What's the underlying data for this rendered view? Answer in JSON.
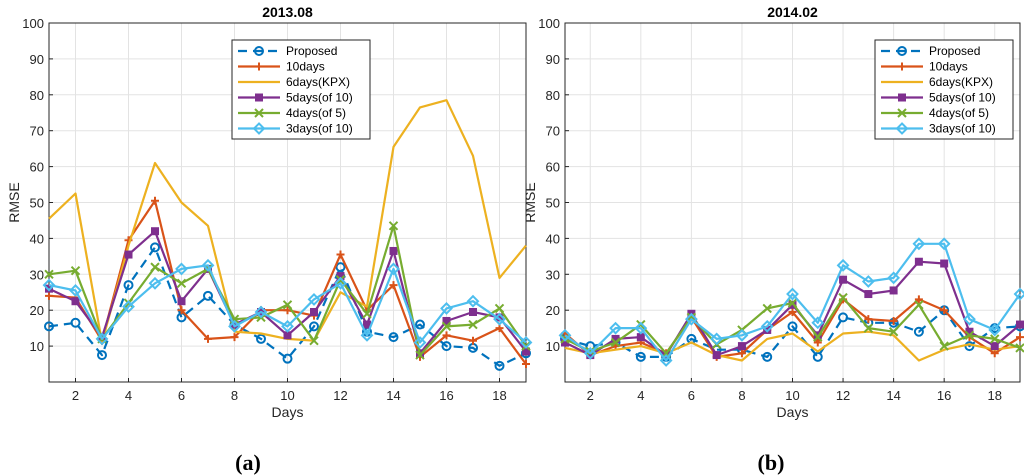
{
  "figure": {
    "panel_labels": [
      "(a)",
      "(b)"
    ]
  },
  "chart_data": [
    {
      "type": "line",
      "title": "2013.08",
      "xlabel": "Days",
      "ylabel": "RMSE",
      "xlim": [
        1,
        19
      ],
      "ylim": [
        0,
        100
      ],
      "xticks": [
        2,
        4,
        6,
        8,
        10,
        12,
        14,
        16,
        18
      ],
      "yticks": [
        10,
        20,
        30,
        40,
        50,
        60,
        70,
        80,
        90,
        100
      ],
      "grid": true,
      "legend_position": "top-right",
      "x": [
        1,
        2,
        3,
        4,
        5,
        6,
        7,
        8,
        9,
        10,
        11,
        12,
        13,
        14,
        15,
        16,
        17,
        18,
        19
      ],
      "series": [
        {
          "name": "Proposed",
          "color": "#0072BD",
          "marker": "circle",
          "dashed": true,
          "values": [
            15.5,
            16.5,
            7.5,
            27,
            37.5,
            18,
            24,
            16,
            12,
            6.5,
            15.5,
            32,
            14,
            12.5,
            16,
            10,
            9.5,
            4.5,
            8
          ]
        },
        {
          "name": "10days",
          "color": "#D95319",
          "marker": "plus",
          "dashed": false,
          "values": [
            24,
            23.5,
            11.5,
            39.5,
            50.5,
            20,
            12,
            12.5,
            20,
            20,
            18.5,
            35.5,
            20,
            27,
            7,
            13,
            11.5,
            15,
            5
          ]
        },
        {
          "name": "6days(KPX)",
          "color": "#EDB120",
          "marker": "none",
          "dashed": false,
          "values": [
            45.5,
            52.5,
            11,
            38,
            61,
            50,
            43.5,
            14,
            13.5,
            12,
            11.5,
            25,
            21,
            65.5,
            76.5,
            78.5,
            63,
            29,
            38
          ]
        },
        {
          "name": "5days(of 10)",
          "color": "#7E2F8E",
          "marker": "square",
          "dashed": false,
          "values": [
            26,
            22.5,
            12.5,
            35.5,
            42,
            22.5,
            31.5,
            16,
            19.5,
            13,
            19.5,
            29.5,
            16,
            36.5,
            8,
            17,
            19.5,
            18,
            8.5
          ]
        },
        {
          "name": "4days(of 5)",
          "color": "#77AC30",
          "marker": "x",
          "dashed": false,
          "values": [
            30,
            31,
            12,
            22,
            32,
            27.5,
            31.5,
            17.5,
            18,
            21.5,
            11.5,
            28.5,
            19,
            43.5,
            7.5,
            15.5,
            16,
            20.5,
            10
          ]
        },
        {
          "name": "3days(of 10)",
          "color": "#4DBEEE",
          "marker": "diamond",
          "dashed": false,
          "values": [
            27,
            25.5,
            12,
            21,
            27.5,
            31.5,
            32.5,
            15.5,
            19.5,
            15.5,
            23,
            27.5,
            13,
            31.5,
            11,
            20.5,
            22.5,
            17.5,
            11
          ]
        }
      ]
    },
    {
      "type": "line",
      "title": "2014.02",
      "xlabel": "Days",
      "ylabel": "RMSE",
      "xlim": [
        1,
        19
      ],
      "ylim": [
        0,
        100
      ],
      "xticks": [
        2,
        4,
        6,
        8,
        10,
        12,
        14,
        16,
        18
      ],
      "yticks": [
        10,
        20,
        30,
        40,
        50,
        60,
        70,
        80,
        90,
        100
      ],
      "grid": true,
      "legend_position": "top-right",
      "x": [
        1,
        2,
        3,
        4,
        5,
        6,
        7,
        8,
        9,
        10,
        11,
        12,
        13,
        14,
        15,
        16,
        17,
        18,
        19
      ],
      "series": [
        {
          "name": "Proposed",
          "color": "#0072BD",
          "marker": "circle",
          "dashed": true,
          "values": [
            12,
            10,
            11,
            7,
            7,
            12,
            9,
            9,
            7,
            15.5,
            7,
            18,
            16.5,
            16.5,
            14,
            20,
            10,
            15,
            15.5
          ]
        },
        {
          "name": "10days",
          "color": "#D95319",
          "marker": "plus",
          "dashed": false,
          "values": [
            13.5,
            7.5,
            10,
            11,
            8,
            18,
            7,
            8,
            14.5,
            19.5,
            11,
            23,
            17.5,
            17,
            23,
            20,
            12.5,
            8,
            12.5
          ]
        },
        {
          "name": "6days(KPX)",
          "color": "#EDB120",
          "marker": "none",
          "dashed": false,
          "values": [
            9.5,
            8,
            9,
            10,
            8,
            11,
            7.5,
            6,
            12,
            13.5,
            8.5,
            13.5,
            14,
            13,
            6,
            9,
            10.5,
            9,
            10
          ]
        },
        {
          "name": "5days(of 10)",
          "color": "#7E2F8E",
          "marker": "square",
          "dashed": false,
          "values": [
            11,
            7.5,
            12,
            12.5,
            7.5,
            19,
            7.5,
            10,
            14.5,
            21.5,
            13,
            28.5,
            24.5,
            25.5,
            33.5,
            33,
            14,
            10,
            16
          ]
        },
        {
          "name": "4days(of 5)",
          "color": "#77AC30",
          "marker": "x",
          "dashed": false,
          "values": [
            12,
            8.5,
            11,
            16,
            8,
            18,
            10.5,
            14.5,
            20.5,
            22,
            12.5,
            23.5,
            15,
            14,
            21.5,
            10,
            13,
            12,
            9.5
          ]
        },
        {
          "name": "3days(of 10)",
          "color": "#4DBEEE",
          "marker": "diamond",
          "dashed": false,
          "values": [
            13,
            8,
            15,
            15,
            6,
            17.5,
            12,
            13,
            15.5,
            24.5,
            16.5,
            32.5,
            28,
            29,
            38.5,
            38.5,
            17.5,
            14.5,
            24.5
          ]
        }
      ]
    }
  ]
}
